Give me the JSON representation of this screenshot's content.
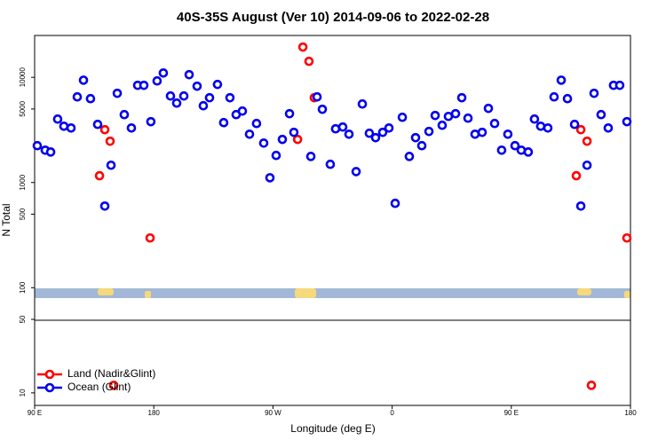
{
  "chart_data": {
    "type": "scatter",
    "title": "40S-35S August (Ver 10)   2014-09-06 to 2022-02-28",
    "x_label": "Longitude (deg E)",
    "y_label": "N Total",
    "xlim": [
      90,
      540
    ],
    "xticks": [
      {
        "value": 90,
        "label": "90 E"
      },
      {
        "value": 180,
        "label": "180"
      },
      {
        "value": 270,
        "label": "90 W"
      },
      {
        "value": 360,
        "label": "0"
      },
      {
        "value": 450,
        "label": "90 E"
      },
      {
        "value": 540,
        "label": "180"
      }
    ],
    "ylim": [
      7.6,
      25000
    ],
    "yscale": "log",
    "yticks": [
      10,
      50,
      100,
      500,
      1000,
      5000,
      10000
    ],
    "legend": "lower left",
    "series": [
      {
        "name": "Land (Nadir&Glint)",
        "color": "#ff0000",
        "x": [
          139.0,
          143.0,
          147.0,
          149.7,
          177.2,
          288.6,
          292.6,
          297.2,
          301.2,
          499.1,
          502.5,
          507.2,
          510.5,
          537.3
        ],
        "values": [
          1160,
          3180,
          2470,
          11.8,
          297,
          2570,
          19400,
          14200,
          6400,
          1160,
          3180,
          2470,
          11.8,
          297
        ]
      },
      {
        "name": "Ocean (Glint)",
        "color": "#0000ee",
        "x": [
          92.0,
          98.0,
          102.1,
          107.4,
          112.1,
          117.5,
          122.2,
          126.9,
          132.2,
          137.6,
          143.0,
          147.7,
          152.4,
          157.7,
          163.1,
          167.8,
          172.5,
          177.8,
          182.5,
          187.2,
          192.6,
          197.3,
          202.7,
          206.7,
          212.7,
          217.4,
          222.1,
          228.1,
          232.8,
          237.5,
          242.2,
          246.9,
          252.3,
          257.6,
          263.0,
          267.7,
          272.4,
          277.1,
          282.5,
          285.8,
          298.6,
          303.3,
          307.3,
          313.3,
          317.3,
          322.7,
          327.4,
          332.8,
          337.5,
          342.8,
          347.5,
          352.9,
          357.6,
          362.3,
          367.7,
          373.0,
          377.7,
          382.4,
          387.8,
          392.5,
          397.8,
          402.5,
          407.9,
          412.6,
          417.3,
          422.6,
          428.0,
          432.7,
          437.4,
          442.7,
          447.4,
          452.8,
          457.5,
          462.8,
          467.5,
          472.2,
          477.6,
          482.3,
          487.7,
          492.4,
          497.8,
          502.5,
          507.2,
          512.5,
          517.8,
          523.2,
          527.2,
          531.9,
          537.3
        ],
        "values": [
          2240,
          2030,
          1950,
          4010,
          3430,
          3300,
          6520,
          9400,
          6270,
          3570,
          597,
          1460,
          7050,
          4420,
          3300,
          8400,
          8400,
          3790,
          9250,
          11000,
          6650,
          5690,
          6650,
          10600,
          8240,
          5370,
          6400,
          8560,
          3710,
          6400,
          4420,
          4780,
          2880,
          3640,
          2370,
          1110,
          1810,
          2570,
          4510,
          3000,
          1770,
          6520,
          4970,
          1490,
          3240,
          3370,
          2880,
          1270,
          5580,
          2940,
          2670,
          3000,
          3300,
          634,
          4170,
          1770,
          2670,
          2240,
          3060,
          4340,
          3500,
          4250,
          4510,
          6400,
          4090,
          2880,
          3000,
          5070,
          3640,
          2030,
          2880,
          2240,
          2030,
          1950,
          4010,
          3430,
          3300,
          6520,
          9400,
          6270,
          3570,
          597,
          1460,
          7050,
          4420,
          3300,
          8400,
          8400,
          3790
        ]
      }
    ]
  }
}
